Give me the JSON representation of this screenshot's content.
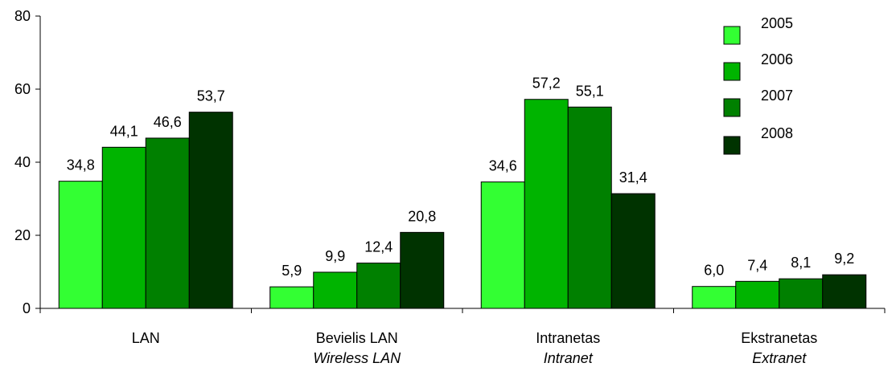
{
  "chart_data": {
    "type": "bar",
    "categories": [
      "LAN",
      "Bevielis LAN",
      "Intranetas",
      "Ekstranetas"
    ],
    "category_sublabels": [
      "",
      "Wireless LAN",
      "Intranet",
      "Extranet"
    ],
    "series": [
      {
        "name": "2005",
        "color": "#33ff33",
        "values": [
          34.8,
          5.9,
          34.6,
          6.0
        ],
        "labels": [
          "34,8",
          "5,9",
          "34,6",
          "6,0"
        ]
      },
      {
        "name": "2006",
        "color": "#00b400",
        "values": [
          44.1,
          9.9,
          57.2,
          7.4
        ],
        "labels": [
          "44,1",
          "9,9",
          "57,2",
          "7,4"
        ]
      },
      {
        "name": "2007",
        "color": "#008000",
        "values": [
          46.6,
          12.4,
          55.1,
          8.1
        ],
        "labels": [
          "46,6",
          "12,4",
          "55,1",
          "8,1"
        ]
      },
      {
        "name": "2008",
        "color": "#003300",
        "values": [
          53.7,
          20.8,
          31.4,
          9.2
        ],
        "labels": [
          "53,7",
          "20,8",
          "31,4",
          "9,2"
        ]
      }
    ],
    "ylim": [
      0,
      80
    ],
    "yticks": [
      0,
      20,
      40,
      60,
      80
    ],
    "grid": false,
    "legend_position": "top-right",
    "title": "",
    "xlabel": "",
    "ylabel": ""
  }
}
